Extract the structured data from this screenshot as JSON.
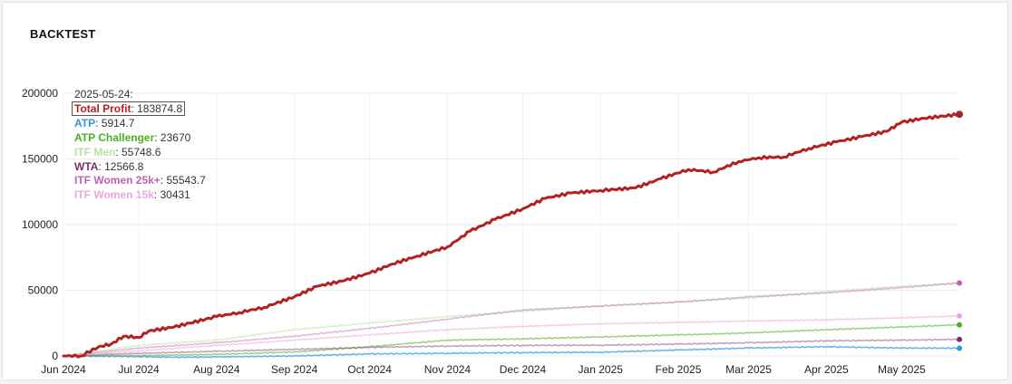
{
  "card": {
    "title": "BACKTEST"
  },
  "chart_data": {
    "type": "line",
    "title": "",
    "xlabel": "",
    "ylabel": "",
    "x_range": [
      "2024-06-01",
      "2025-05-24"
    ],
    "ylim": [
      0,
      200000
    ],
    "y_ticks": [
      0,
      50000,
      100000,
      150000,
      200000
    ],
    "y_tick_labels": [
      "0",
      "50000",
      "100000",
      "150000",
      "200000"
    ],
    "x_ticks": [
      "2024-06-01",
      "2024-07-01",
      "2024-08-01",
      "2024-09-01",
      "2024-10-01",
      "2024-11-01",
      "2024-12-01",
      "2025-01-01",
      "2025-02-01",
      "2025-03-01",
      "2025-04-01",
      "2025-05-01"
    ],
    "x_tick_labels": [
      "Jun 2024",
      "Jul 2024",
      "Aug 2024",
      "Sep 2024",
      "Oct 2024",
      "Nov 2024",
      "Dec 2024",
      "Jan 2025",
      "Feb 2025",
      "Mar 2025",
      "Apr 2025",
      "May 2025"
    ],
    "grid": true,
    "legend": {
      "placement": "top-left",
      "date_label": "2025-05-24:",
      "entries": [
        {
          "name": "Total Profit",
          "value": "183874.8",
          "color": "#b22222",
          "highlighted": true
        },
        {
          "name": "ATP",
          "value": "5914.7",
          "color": "#2f96e0"
        },
        {
          "name": "ATP Challenger",
          "value": "23670",
          "color": "#4caf22"
        },
        {
          "name": "ITF Men",
          "value": "55748.6",
          "color": "#b6e3a0"
        },
        {
          "name": "WTA",
          "value": "12566.8",
          "color": "#7b2d6e"
        },
        {
          "name": "ITF Women 25k+",
          "value": "55543.7",
          "color": "#c060b0"
        },
        {
          "name": "ITF Women 15k",
          "value": "30431",
          "color": "#eaa8dc"
        }
      ]
    },
    "series": [
      {
        "name": "Total Profit",
        "color": "#b22222",
        "width": 3,
        "opacity": 1,
        "marker": true,
        "points": [
          [
            "2024-06-01",
            0
          ],
          [
            "2024-06-08",
            0
          ],
          [
            "2024-06-15",
            7000
          ],
          [
            "2024-06-20",
            9000
          ],
          [
            "2024-06-25",
            15000
          ],
          [
            "2024-07-01",
            14000
          ],
          [
            "2024-07-05",
            19000
          ],
          [
            "2024-07-15",
            22000
          ],
          [
            "2024-08-01",
            30000
          ],
          [
            "2024-08-10",
            33000
          ],
          [
            "2024-08-20",
            37000
          ],
          [
            "2024-09-01",
            45000
          ],
          [
            "2024-09-10",
            53000
          ],
          [
            "2024-09-20",
            57000
          ],
          [
            "2024-10-01",
            63000
          ],
          [
            "2024-10-10",
            70000
          ],
          [
            "2024-10-20",
            76000
          ],
          [
            "2024-11-01",
            83000
          ],
          [
            "2024-11-10",
            95000
          ],
          [
            "2024-11-20",
            104000
          ],
          [
            "2024-12-01",
            112000
          ],
          [
            "2024-12-10",
            120000
          ],
          [
            "2024-12-20",
            124000
          ],
          [
            "2025-01-01",
            126000
          ],
          [
            "2025-01-15",
            128000
          ],
          [
            "2025-01-25",
            135000
          ],
          [
            "2025-02-05",
            142000
          ],
          [
            "2025-02-15",
            140000
          ],
          [
            "2025-02-25",
            148000
          ],
          [
            "2025-03-05",
            151000
          ],
          [
            "2025-03-15",
            151500
          ],
          [
            "2025-03-25",
            158000
          ],
          [
            "2025-04-05",
            163000
          ],
          [
            "2025-04-15",
            167000
          ],
          [
            "2025-04-25",
            171000
          ],
          [
            "2025-05-01",
            178000
          ],
          [
            "2025-05-10",
            181000
          ],
          [
            "2025-05-24",
            184000
          ]
        ]
      },
      {
        "name": "ATP",
        "color": "#2f96e0",
        "width": 1.6,
        "opacity": 0.7,
        "marker": true,
        "points": [
          [
            "2024-06-01",
            0
          ],
          [
            "2024-07-01",
            -500
          ],
          [
            "2024-07-15",
            -1000
          ],
          [
            "2024-08-01",
            -800
          ],
          [
            "2024-09-01",
            0
          ],
          [
            "2024-10-01",
            1500
          ],
          [
            "2024-11-01",
            2000
          ],
          [
            "2024-12-01",
            2500
          ],
          [
            "2025-01-01",
            2800
          ],
          [
            "2025-02-01",
            4500
          ],
          [
            "2025-03-01",
            6000
          ],
          [
            "2025-04-01",
            7000
          ],
          [
            "2025-05-01",
            6000
          ],
          [
            "2025-05-24",
            5900
          ]
        ]
      },
      {
        "name": "ATP Challenger",
        "color": "#4caf22",
        "width": 1.6,
        "opacity": 0.55,
        "marker": true,
        "points": [
          [
            "2024-06-01",
            0
          ],
          [
            "2024-07-01",
            300
          ],
          [
            "2024-08-01",
            1200
          ],
          [
            "2024-09-01",
            3000
          ],
          [
            "2024-10-01",
            7000
          ],
          [
            "2024-11-01",
            12000
          ],
          [
            "2024-12-01",
            13000
          ],
          [
            "2025-01-01",
            14500
          ],
          [
            "2025-02-01",
            16000
          ],
          [
            "2025-03-01",
            17500
          ],
          [
            "2025-04-01",
            20000
          ],
          [
            "2025-05-01",
            22000
          ],
          [
            "2025-05-24",
            23700
          ]
        ]
      },
      {
        "name": "ITF Men",
        "color": "#b6e3a0",
        "width": 1.6,
        "opacity": 0.55,
        "marker": false,
        "points": [
          [
            "2024-06-01",
            0
          ],
          [
            "2024-07-01",
            8000
          ],
          [
            "2024-08-01",
            12000
          ],
          [
            "2024-09-01",
            20000
          ],
          [
            "2024-10-01",
            25000
          ],
          [
            "2024-11-01",
            30000
          ],
          [
            "2024-12-01",
            34000
          ],
          [
            "2025-01-01",
            38000
          ],
          [
            "2025-02-01",
            41000
          ],
          [
            "2025-03-01",
            44000
          ],
          [
            "2025-04-01",
            49000
          ],
          [
            "2025-05-01",
            53000
          ],
          [
            "2025-05-24",
            55700
          ]
        ]
      },
      {
        "name": "WTA",
        "color": "#7b2d6e",
        "width": 1.6,
        "opacity": 0.45,
        "marker": true,
        "points": [
          [
            "2024-06-01",
            0
          ],
          [
            "2024-07-01",
            2000
          ],
          [
            "2024-08-01",
            3500
          ],
          [
            "2024-09-01",
            5000
          ],
          [
            "2024-10-01",
            6500
          ],
          [
            "2024-11-01",
            7500
          ],
          [
            "2024-12-01",
            8000
          ],
          [
            "2025-01-01",
            8200
          ],
          [
            "2025-02-01",
            9000
          ],
          [
            "2025-03-01",
            10000
          ],
          [
            "2025-04-01",
            11500
          ],
          [
            "2025-05-01",
            12000
          ],
          [
            "2025-05-24",
            12600
          ]
        ]
      },
      {
        "name": "ITF Women 25k+",
        "color": "#c060b0",
        "width": 1.6,
        "opacity": 0.45,
        "marker": true,
        "points": [
          [
            "2024-06-01",
            0
          ],
          [
            "2024-07-01",
            6000
          ],
          [
            "2024-08-01",
            10000
          ],
          [
            "2024-09-01",
            15000
          ],
          [
            "2024-10-01",
            21000
          ],
          [
            "2024-11-01",
            28000
          ],
          [
            "2024-12-01",
            35000
          ],
          [
            "2025-01-01",
            38000
          ],
          [
            "2025-02-01",
            41000
          ],
          [
            "2025-03-01",
            45000
          ],
          [
            "2025-04-01",
            48000
          ],
          [
            "2025-05-01",
            52000
          ],
          [
            "2025-05-24",
            55500
          ]
        ]
      },
      {
        "name": "ITF Women 15k",
        "color": "#eaa8dc",
        "width": 1.6,
        "opacity": 0.55,
        "marker": true,
        "points": [
          [
            "2024-06-01",
            0
          ],
          [
            "2024-07-01",
            4000
          ],
          [
            "2024-08-01",
            8000
          ],
          [
            "2024-09-01",
            12000
          ],
          [
            "2024-10-01",
            16000
          ],
          [
            "2024-11-01",
            20000
          ],
          [
            "2024-12-01",
            22500
          ],
          [
            "2025-01-01",
            24500
          ],
          [
            "2025-02-01",
            25500
          ],
          [
            "2025-03-01",
            26500
          ],
          [
            "2025-04-01",
            27500
          ],
          [
            "2025-05-01",
            29000
          ],
          [
            "2025-05-24",
            30400
          ]
        ]
      }
    ]
  }
}
